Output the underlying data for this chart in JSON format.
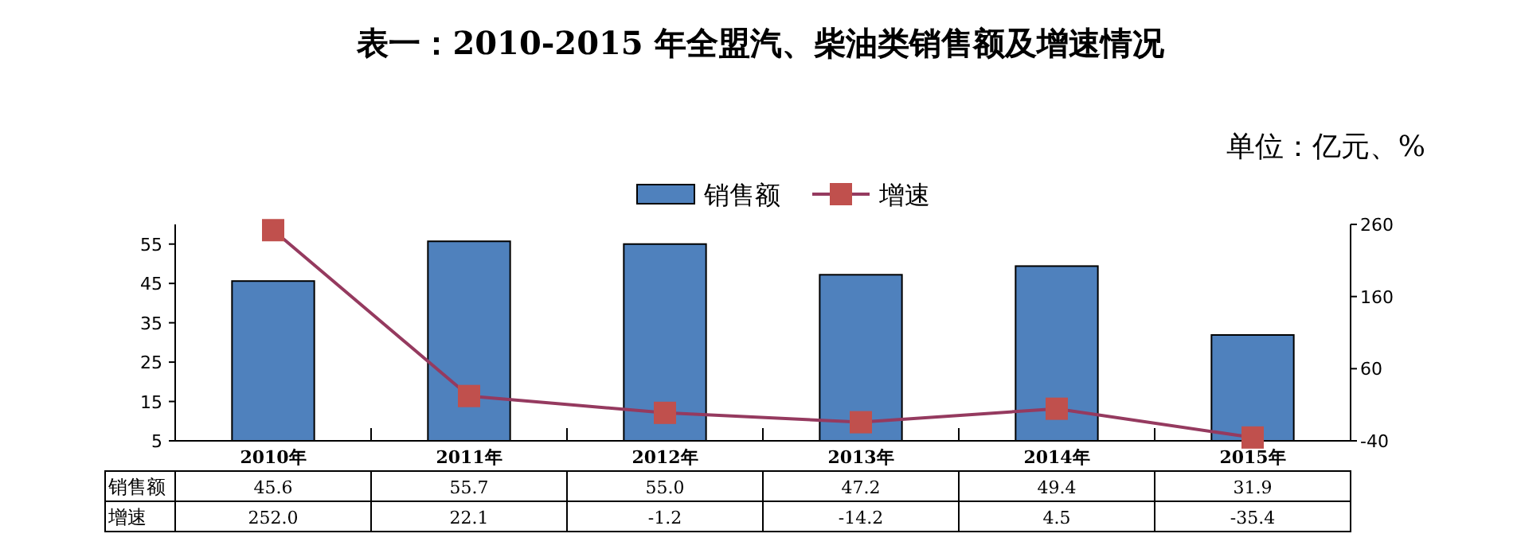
{
  "chart_data": {
    "type": "bar",
    "title": "表一：2010-2015 年全盟汽、柴油类销售额及增速情况",
    "annotations": [
      "单位：亿元、%"
    ],
    "categories": [
      "2010年",
      "2011年",
      "2012年",
      "2013年",
      "2014年",
      "2015年"
    ],
    "series": [
      {
        "name": "销售额",
        "color": "#4f81bd",
        "values": [
          45.6,
          55.7,
          55.0,
          47.2,
          49.4,
          31.9
        ],
        "value_labels": [
          "45.6",
          "55.7",
          "55.0",
          "47.2",
          "49.4",
          "31.9"
        ]
      },
      {
        "name": "增速",
        "type": "line",
        "axis": "y2",
        "color": "#c0504d",
        "marker": "square",
        "values": [
          252.0,
          22.1,
          -1.2,
          -14.2,
          4.5,
          -35.4
        ],
        "value_labels": [
          "252.0",
          "22.1",
          "-1.2",
          "-14.2",
          "4.5",
          "-35.4"
        ]
      }
    ],
    "ylim": [
      5,
      60
    ],
    "yticks": [
      5,
      15,
      25,
      35,
      45,
      55
    ],
    "y2lim": [
      -40,
      260
    ],
    "y2ticks": [
      -40,
      60,
      160,
      260
    ],
    "legend": "top",
    "grid": false
  }
}
